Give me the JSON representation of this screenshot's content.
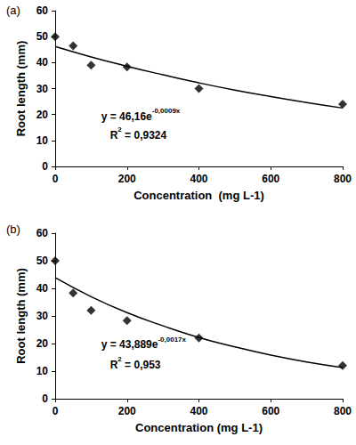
{
  "chart_data": [
    {
      "type": "scatter",
      "title": "(a)",
      "x_label": "Concentration  (mg L-1)",
      "y_label": "Root length (mm)",
      "xlim": [
        0,
        800
      ],
      "xticks": [
        0,
        200,
        400,
        600,
        800
      ],
      "ylim": [
        0,
        60
      ],
      "yticks": [
        0,
        10,
        20,
        30,
        40,
        50,
        60
      ],
      "grid": false,
      "annotations": [
        {
          "text": "y = 46,16e",
          "superscript": "-0,0009x"
        },
        {
          "text": "R",
          "superscript": "2",
          "after": " = 0,9324"
        }
      ],
      "series": [
        {
          "type": "scatter",
          "marker": "diamond",
          "color": "#000000",
          "x": [
            0,
            50,
            100,
            200,
            400,
            800
          ],
          "values": [
            50,
            46.5,
            39,
            38.3,
            30,
            24
          ]
        },
        {
          "type": "line",
          "line_style": "solid",
          "color": "#000000",
          "x": [
            0,
            100,
            200,
            300,
            400,
            500,
            600,
            700,
            800
          ],
          "values": [
            46.2,
            42.2,
            38.6,
            35.3,
            32.2,
            29.4,
            26.9,
            24.6,
            22.5
          ]
        }
      ]
    },
    {
      "type": "scatter",
      "title": "(b)",
      "x_label": "Concentration (mg L-1)",
      "y_label": "Root length (mm)",
      "xlim": [
        0,
        800
      ],
      "xticks": [
        0,
        200,
        400,
        600,
        800
      ],
      "ylim": [
        0,
        60
      ],
      "yticks": [
        0,
        10,
        20,
        30,
        40,
        50,
        60
      ],
      "grid": false,
      "annotations": [
        {
          "text": "y = 43,889e",
          "superscript": "-0,0017x"
        },
        {
          "text": "R",
          "superscript": "2",
          "after": " = 0,953"
        }
      ],
      "series": [
        {
          "type": "scatter",
          "marker": "diamond",
          "color": "#000000",
          "x": [
            0,
            50,
            100,
            200,
            400,
            800
          ],
          "values": [
            50,
            38.3,
            32,
            28.3,
            22,
            12
          ]
        },
        {
          "type": "line",
          "line_style": "solid",
          "color": "#000000",
          "x": [
            0,
            100,
            200,
            300,
            400,
            500,
            600,
            700,
            800
          ],
          "values": [
            43.9,
            37.0,
            31.2,
            26.4,
            22.2,
            18.8,
            15.8,
            13.3,
            11.3
          ]
        }
      ]
    }
  ]
}
